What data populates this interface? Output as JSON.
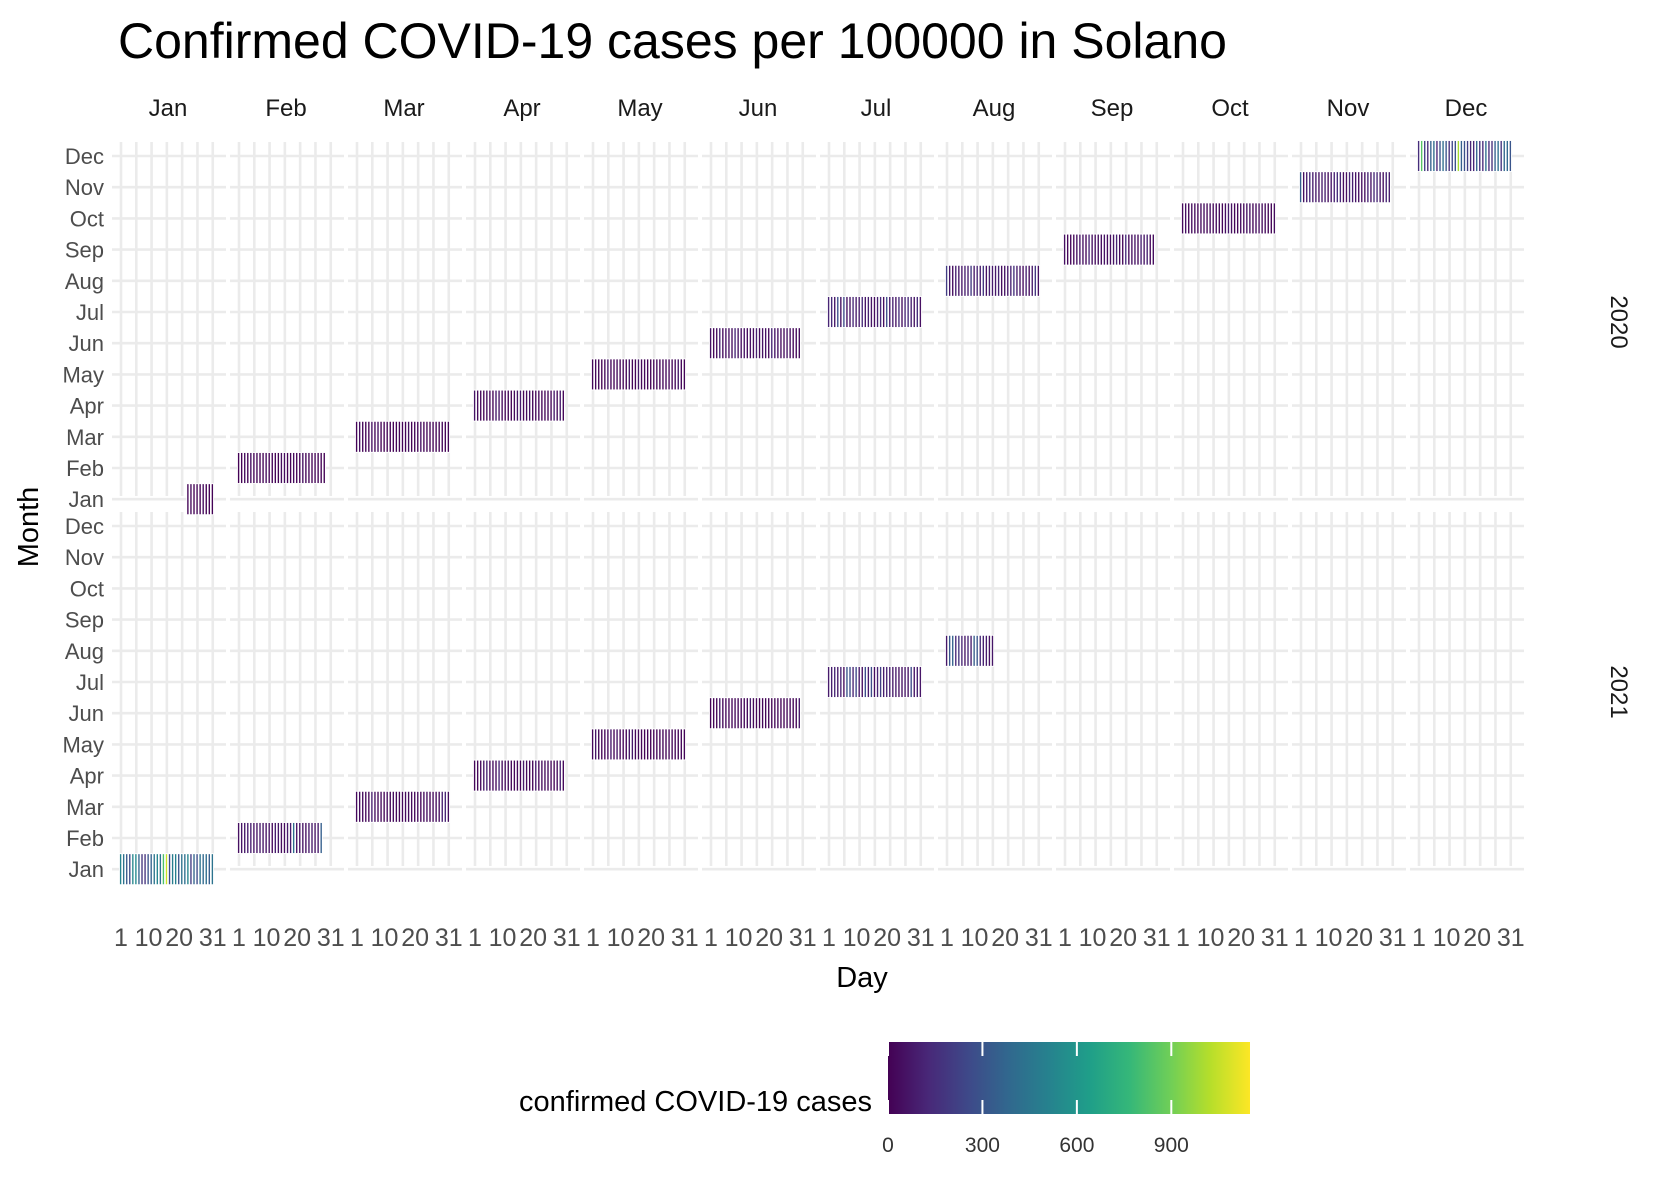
{
  "chart_data": {
    "type": "heatmap",
    "title": "Confirmed COVID-19 cases per 100000 in Solano",
    "xlabel": "Day",
    "ylabel": "Month",
    "facet_columns": [
      "Jan",
      "Feb",
      "Mar",
      "Apr",
      "May",
      "Jun",
      "Jul",
      "Aug",
      "Sep",
      "Oct",
      "Nov",
      "Dec"
    ],
    "facet_rows": [
      "2020",
      "2021"
    ],
    "y_categories": [
      "Jan",
      "Feb",
      "Mar",
      "Apr",
      "May",
      "Jun",
      "Jul",
      "Aug",
      "Sep",
      "Oct",
      "Nov",
      "Dec"
    ],
    "x_ticks": [
      1,
      10,
      20,
      31
    ],
    "x_tick_labels": [
      "1",
      "10",
      "20",
      "31"
    ],
    "legend": {
      "title": "confirmed COVID-19 cases",
      "position": "bottom",
      "range": [
        0,
        1150
      ],
      "ticks": [
        0,
        300,
        600,
        900
      ],
      "tick_labels": [
        "0",
        "300",
        "600",
        "900"
      ],
      "colormap": "viridis"
    },
    "grid": true,
    "series": [
      {
        "year": "2020",
        "month": "Jan",
        "start_day": 23,
        "end_day": 31,
        "typical": 8,
        "peak": 35
      },
      {
        "year": "2020",
        "month": "Feb",
        "start_day": 1,
        "end_day": 29,
        "typical": 8,
        "peak": 40
      },
      {
        "year": "2020",
        "month": "Mar",
        "start_day": 1,
        "end_day": 31,
        "typical": 12,
        "peak": 60
      },
      {
        "year": "2020",
        "month": "Apr",
        "start_day": 1,
        "end_day": 30,
        "typical": 25,
        "peak": 90
      },
      {
        "year": "2020",
        "month": "May",
        "start_day": 1,
        "end_day": 31,
        "typical": 20,
        "peak": 80
      },
      {
        "year": "2020",
        "month": "Jun",
        "start_day": 1,
        "end_day": 30,
        "typical": 45,
        "peak": 140
      },
      {
        "year": "2020",
        "month": "Jul",
        "start_day": 1,
        "end_day": 31,
        "typical": 110,
        "peak": 320
      },
      {
        "year": "2020",
        "month": "Aug",
        "start_day": 1,
        "end_day": 31,
        "typical": 90,
        "peak": 220
      },
      {
        "year": "2020",
        "month": "Sep",
        "start_day": 1,
        "end_day": 30,
        "typical": 50,
        "peak": 140
      },
      {
        "year": "2020",
        "month": "Oct",
        "start_day": 1,
        "end_day": 31,
        "typical": 40,
        "peak": 120
      },
      {
        "year": "2020",
        "month": "Nov",
        "start_day": 1,
        "end_day": 30,
        "typical": 110,
        "peak": 450
      },
      {
        "year": "2020",
        "month": "Dec",
        "start_day": 1,
        "end_day": 31,
        "typical": 320,
        "peak": 1100
      },
      {
        "year": "2021",
        "month": "Jan",
        "start_day": 1,
        "end_day": 31,
        "typical": 420,
        "peak": 1150
      },
      {
        "year": "2021",
        "month": "Feb",
        "start_day": 1,
        "end_day": 28,
        "typical": 70,
        "peak": 480
      },
      {
        "year": "2021",
        "month": "Mar",
        "start_day": 1,
        "end_day": 31,
        "typical": 30,
        "peak": 120
      },
      {
        "year": "2021",
        "month": "Apr",
        "start_day": 1,
        "end_day": 30,
        "typical": 28,
        "peak": 110
      },
      {
        "year": "2021",
        "month": "May",
        "start_day": 1,
        "end_day": 31,
        "typical": 18,
        "peak": 80
      },
      {
        "year": "2021",
        "month": "Jun",
        "start_day": 1,
        "end_day": 30,
        "typical": 20,
        "peak": 90
      },
      {
        "year": "2021",
        "month": "Jul",
        "start_day": 1,
        "end_day": 31,
        "typical": 90,
        "peak": 300
      },
      {
        "year": "2021",
        "month": "Aug",
        "start_day": 1,
        "end_day": 16,
        "typical": 140,
        "peak": 380
      }
    ]
  }
}
